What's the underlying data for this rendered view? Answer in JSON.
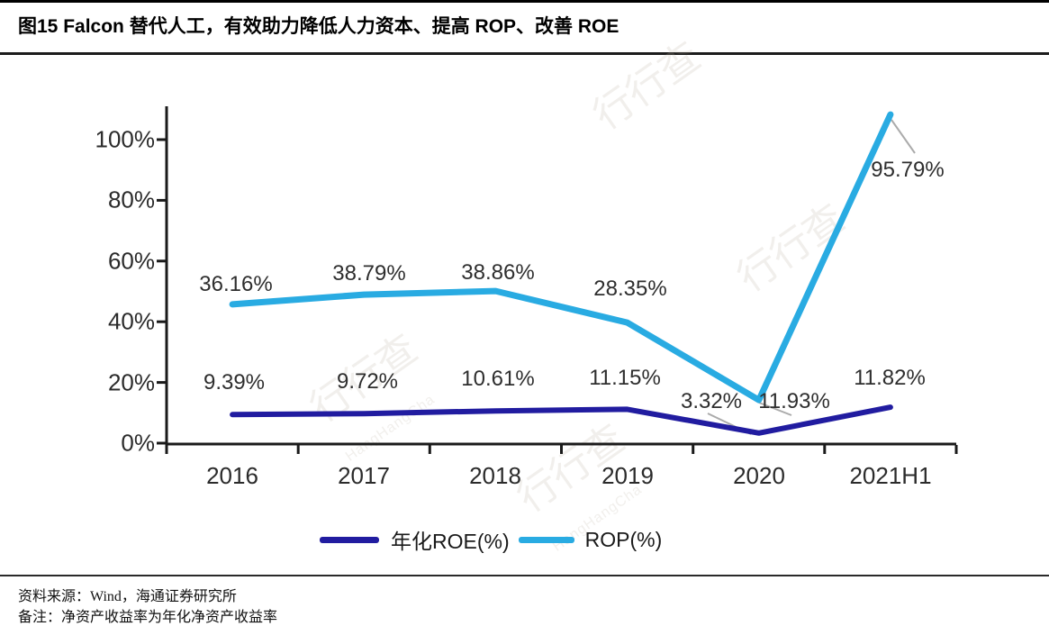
{
  "title": "图15 Falcon 替代人工，有效助力降低人力资本、提高 ROP、改善 ROE",
  "footer": {
    "source": "资料来源：Wind，海通证券研究所",
    "note": "备注：净资产收益率为年化净资产收益率"
  },
  "watermark": {
    "text": "行行查",
    "subtext": "HangHangCha"
  },
  "colors": {
    "roe_line": "#211CA0",
    "rop_line": "#29ABE2",
    "axis": "#1a1a1a",
    "leader": "#ABABAB"
  },
  "legend": [
    {
      "label": "年化ROE(%)",
      "color": "#211CA0"
    },
    {
      "label": "ROP(%)",
      "color": "#29ABE2"
    }
  ],
  "chart_data": {
    "type": "line",
    "categories": [
      "2016",
      "2017",
      "2018",
      "2019",
      "2020",
      "2021H1"
    ],
    "series": [
      {
        "name": "年化ROE(%)",
        "color": "#211CA0",
        "values": [
          9.39,
          9.72,
          10.61,
          11.15,
          3.32,
          11.82
        ]
      },
      {
        "name": "ROP(%)",
        "color": "#29ABE2",
        "values": [
          36.16,
          38.79,
          38.86,
          28.35,
          11.93,
          95.79
        ],
        "drawn_values": [
          45.7,
          48.9,
          50.1,
          39.7,
          14.2,
          108.2
        ]
      }
    ],
    "labels": {
      "rop": [
        "36.16%",
        "38.79%",
        "38.86%",
        "28.35%",
        "11.93%",
        "95.79%"
      ],
      "roe": [
        "9.39%",
        "9.72%",
        "10.61%",
        "11.15%",
        "3.32%",
        "11.82%"
      ]
    },
    "yticks": [
      "100%",
      "80%",
      "60%",
      "40%",
      "20%",
      "0%"
    ],
    "ylim": [
      0,
      100
    ],
    "grid": false,
    "legend_position": "bottom"
  }
}
